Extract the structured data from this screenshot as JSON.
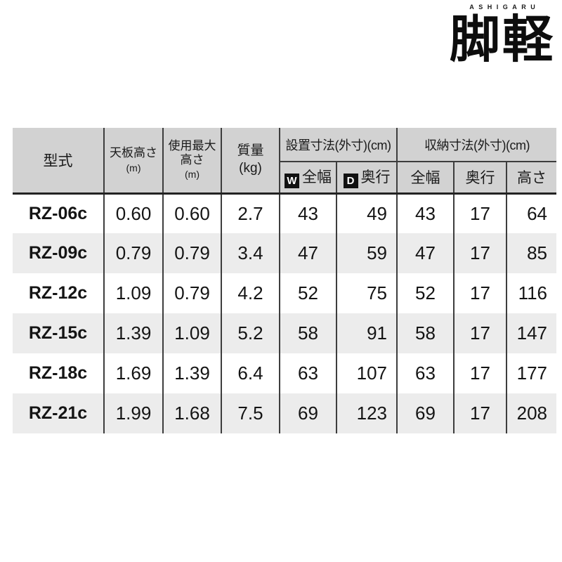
{
  "logo": {
    "brand_en": "ASHIGARU",
    "brand_jp": "脚軽",
    "accent_color": "#e60012"
  },
  "colors": {
    "header_bg": "#d2d2d2",
    "stripe_bg": "#ececec",
    "border": "#3d3d3d",
    "text": "#1a1a1a"
  },
  "table": {
    "header": {
      "model": "型式",
      "top_height_l1": "天板高さ",
      "top_height_unit": "(m)",
      "max_height_l1": "使用最大",
      "max_height_l2": "高さ",
      "max_height_unit": "(m)",
      "mass_l1": "質量",
      "mass_unit": "(kg)",
      "install_group": "設置寸法(外寸)(cm)",
      "storage_group": "収納寸法(外寸)(cm)",
      "w_badge": "W",
      "install_width": "全幅",
      "d_badge": "D",
      "install_depth": "奥行",
      "storage_width": "全幅",
      "storage_depth": "奥行",
      "storage_height": "高さ"
    },
    "rows": [
      {
        "model": "RZ-06c",
        "top_height": "0.60",
        "max_height": "0.60",
        "mass": "2.7",
        "install_width": "43",
        "install_depth": "49",
        "storage_width": "43",
        "storage_depth": "17",
        "storage_height": "64"
      },
      {
        "model": "RZ-09c",
        "top_height": "0.79",
        "max_height": "0.79",
        "mass": "3.4",
        "install_width": "47",
        "install_depth": "59",
        "storage_width": "47",
        "storage_depth": "17",
        "storage_height": "85"
      },
      {
        "model": "RZ-12c",
        "top_height": "1.09",
        "max_height": "0.79",
        "mass": "4.2",
        "install_width": "52",
        "install_depth": "75",
        "storage_width": "52",
        "storage_depth": "17",
        "storage_height": "116"
      },
      {
        "model": "RZ-15c",
        "top_height": "1.39",
        "max_height": "1.09",
        "mass": "5.2",
        "install_width": "58",
        "install_depth": "91",
        "storage_width": "58",
        "storage_depth": "17",
        "storage_height": "147"
      },
      {
        "model": "RZ-18c",
        "top_height": "1.69",
        "max_height": "1.39",
        "mass": "6.4",
        "install_width": "63",
        "install_depth": "107",
        "storage_width": "63",
        "storage_depth": "17",
        "storage_height": "177"
      },
      {
        "model": "RZ-21c",
        "top_height": "1.99",
        "max_height": "1.68",
        "mass": "7.5",
        "install_width": "69",
        "install_depth": "123",
        "storage_width": "69",
        "storage_depth": "17",
        "storage_height": "208"
      }
    ]
  },
  "chart_data": {
    "type": "table",
    "columns": [
      "型式",
      "天板高さ(m)",
      "使用最大高さ(m)",
      "質量(kg)",
      "設置寸法(外寸)(cm) W全幅",
      "設置寸法(外寸)(cm) D奥行",
      "収納寸法(外寸)(cm) 全幅",
      "収納寸法(外寸)(cm) 奥行",
      "収納寸法(外寸)(cm) 高さ"
    ],
    "rows": [
      [
        "RZ-06c",
        0.6,
        0.6,
        2.7,
        43,
        49,
        43,
        17,
        64
      ],
      [
        "RZ-09c",
        0.79,
        0.79,
        3.4,
        47,
        59,
        47,
        17,
        85
      ],
      [
        "RZ-12c",
        1.09,
        0.79,
        4.2,
        52,
        75,
        52,
        17,
        116
      ],
      [
        "RZ-15c",
        1.39,
        1.09,
        5.2,
        58,
        91,
        58,
        17,
        147
      ],
      [
        "RZ-18c",
        1.69,
        1.39,
        6.4,
        63,
        107,
        63,
        17,
        177
      ],
      [
        "RZ-21c",
        1.99,
        1.68,
        7.5,
        69,
        123,
        69,
        17,
        208
      ]
    ]
  }
}
